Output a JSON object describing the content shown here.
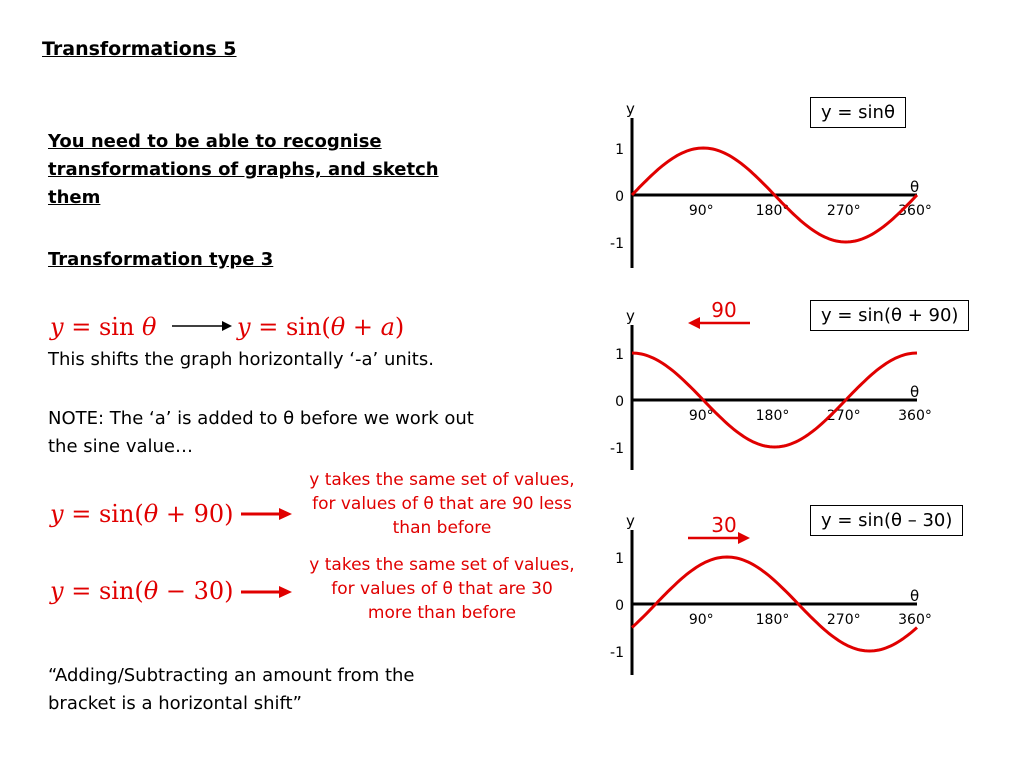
{
  "title": "Transformations 5",
  "intro": "You need to be able to recognise transformations of graphs, and sketch them",
  "subheading": "Transformation type 3",
  "formulas": {
    "base_y": "y",
    "base_eq": "=",
    "base_fn": "sin",
    "theta": "θ",
    "general_rhs_open": "sin(",
    "general_a": "a",
    "plus": "+",
    "minus": "−",
    "close": ")",
    "ex1_num": "90",
    "ex2_num": "30"
  },
  "shift_text": "This shifts the graph horizontally ‘-a’ units.",
  "note_text": "NOTE: The ‘a’ is added to θ before we work out the sine value…",
  "red_notes": [
    "y takes the same set of values, for values of θ that are 90 less than before",
    "y takes the same set of values, for values of θ that are 30 more than before"
  ],
  "quote": "“Adding/Subtracting an amount from the bracket is a horizontal shift”",
  "colors": {
    "curve": "#e00000",
    "axis": "#000000",
    "annotation": "#e00000"
  },
  "chart_data": [
    {
      "type": "line",
      "label": "y = sinθ",
      "function": "sin(θ)",
      "shift_degrees": 0,
      "xlabel": "θ",
      "ylabel": "y",
      "x_ticks": [
        "90°",
        "180°",
        "270°",
        "360°"
      ],
      "y_ticks": [
        "1",
        "0",
        "-1"
      ],
      "xlim": [
        0,
        360
      ],
      "ylim": [
        -1,
        1
      ],
      "shift_annotation": null
    },
    {
      "type": "line",
      "label": "y = sin(θ + 90)",
      "function": "sin(θ + 90)",
      "shift_degrees": 90,
      "xlabel": "θ",
      "ylabel": "y",
      "x_ticks": [
        "90°",
        "180°",
        "270°",
        "360°"
      ],
      "y_ticks": [
        "1",
        "0",
        "-1"
      ],
      "xlim": [
        0,
        360
      ],
      "ylim": [
        -1,
        1
      ],
      "shift_annotation": {
        "text": "90",
        "direction": "left"
      }
    },
    {
      "type": "line",
      "label": "y = sin(θ – 30)",
      "function": "sin(θ - 30)",
      "shift_degrees": -30,
      "xlabel": "θ",
      "ylabel": "y",
      "x_ticks": [
        "90°",
        "180°",
        "270°",
        "360°"
      ],
      "y_ticks": [
        "1",
        "0",
        "-1"
      ],
      "xlim": [
        0,
        360
      ],
      "ylim": [
        -1,
        1
      ],
      "shift_annotation": {
        "text": "30",
        "direction": "right"
      }
    }
  ]
}
